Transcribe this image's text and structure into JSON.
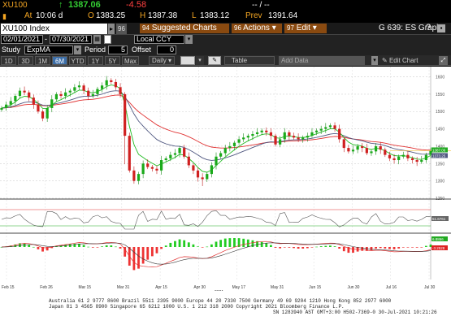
{
  "header": {
    "ticker": "XU100",
    "arrow": "↑",
    "last": "1387.06",
    "change": "-4.58",
    "at_label": "At",
    "time": "10:06 d",
    "o_label": "O",
    "open": "1383.25",
    "h_label": "H",
    "high": "1387.38",
    "l_label": "L",
    "low": "1383.12",
    "prev_label": "Prev",
    "prev": "1391.64",
    "dashes": "-- / --"
  },
  "toolbar": {
    "security": "XU100 Index",
    "security_btn": "96",
    "suggested_num": "94",
    "suggested": "Suggested Charts",
    "actions_num": "96",
    "actions": "Actions",
    "edit_num": "97",
    "edit": "Edit",
    "graph": "G 639: ES Graph"
  },
  "dates": {
    "start": "02/01/2021",
    "end": "07/30/2021",
    "currency": "Local CCY"
  },
  "study": {
    "label": "Study",
    "name": "ExpMA",
    "period_label": "Period",
    "period": "5",
    "offset_label": "Offset",
    "offset": "0"
  },
  "tabs": [
    "1D",
    "3D",
    "1M",
    "6M",
    "YTD",
    "1Y",
    "5Y",
    "Max"
  ],
  "active_tab": "6M",
  "freq": "Daily",
  "table_btn": "Table",
  "add_data": "Add Data",
  "edit_chart": "Edit Chart",
  "chart_data": {
    "type": "candlestick",
    "xlabels": [
      "Feb 15",
      "Feb 26",
      "Mar 15",
      "Mar 31",
      "Apr 15",
      "Apr 30",
      "May 17",
      "May 31",
      "Jun 15",
      "Jun 30",
      "Jul 16",
      "Jul 30"
    ],
    "year_label": "2021",
    "y_ticks": [
      "1600",
      "1550",
      "1500",
      "1450",
      "1400",
      "1350",
      "1300",
      "1250"
    ],
    "last_value": "1387.06",
    "ma_value": "1373.25",
    "close": [
      1510,
      1520,
      1530,
      1545,
      1560,
      1555,
      1540,
      1520,
      1500,
      1480,
      1510,
      1535,
      1550,
      1545,
      1555,
      1560,
      1570,
      1575,
      1560,
      1545,
      1550,
      1565,
      1575,
      1590,
      1585,
      1570,
      1550,
      1430,
      1330,
      1300,
      1320,
      1350,
      1340,
      1335,
      1330,
      1360,
      1365,
      1375,
      1380,
      1395,
      1370,
      1345,
      1330,
      1310,
      1305,
      1320,
      1345,
      1370,
      1380,
      1395,
      1400,
      1410,
      1420,
      1425,
      1430,
      1435,
      1440,
      1445,
      1440,
      1430,
      1405,
      1420,
      1440,
      1430,
      1425,
      1420,
      1425,
      1430,
      1440,
      1445,
      1450,
      1455,
      1460,
      1450,
      1420,
      1395,
      1385,
      1390,
      1400,
      1395,
      1380,
      1385,
      1400,
      1390,
      1375,
      1365,
      1360,
      1370,
      1375,
      1365,
      1360,
      1355,
      1360,
      1375,
      1387
    ],
    "rsi_value": "51.6761",
    "macd_values": [
      "6.8866",
      "-3.2528"
    ]
  },
  "footer": {
    "line1": "Australia 61 2 9777 8600  Brazil 5511 2395 9000  Europe 44 20 7330 7500  Germany 49 69 9204 1210  Hong Kong 852 2977 6000",
    "line2": "Japan 81 3 4565 8900        Singapore 65 6212 1000        U.S. 1 212 318 2000        Copyright 2021 Bloomberg Finance L.P.",
    "line3": "SN 1283940 AST  GMT+3:00 H502-7369-0 30-Jul-2021 10:21:26"
  }
}
